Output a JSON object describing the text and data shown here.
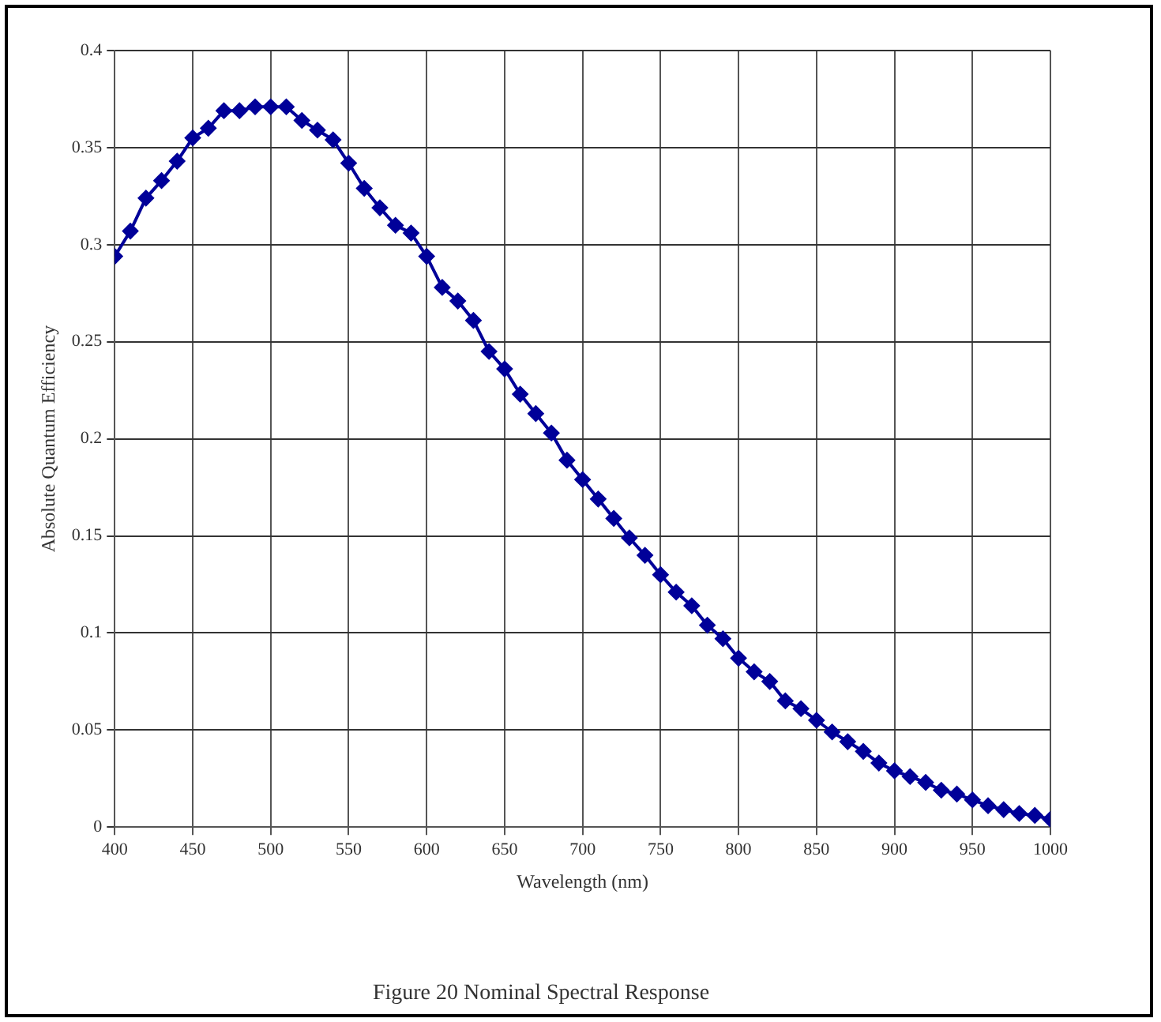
{
  "chart_data": {
    "type": "line",
    "title": "Figure 20 Nominal Spectral Response",
    "xlabel": "Wavelength (nm)",
    "ylabel": "Absolute Quantum Efficiency",
    "x": [
      400,
      410,
      420,
      430,
      440,
      450,
      460,
      470,
      480,
      490,
      500,
      510,
      520,
      530,
      540,
      550,
      560,
      570,
      580,
      590,
      600,
      610,
      620,
      630,
      640,
      650,
      660,
      670,
      680,
      690,
      700,
      710,
      720,
      730,
      740,
      750,
      760,
      770,
      780,
      790,
      800,
      810,
      820,
      830,
      840,
      850,
      860,
      870,
      880,
      890,
      900,
      910,
      920,
      930,
      940,
      950,
      960,
      970,
      980,
      990,
      1000
    ],
    "series": [
      {
        "color": "#000099",
        "values": [
          0.294,
          0.307,
          0.324,
          0.333,
          0.343,
          0.355,
          0.36,
          0.369,
          0.369,
          0.371,
          0.371,
          0.371,
          0.364,
          0.359,
          0.354,
          0.342,
          0.329,
          0.319,
          0.31,
          0.306,
          0.294,
          0.278,
          0.271,
          0.261,
          0.245,
          0.236,
          0.223,
          0.213,
          0.203,
          0.189,
          0.179,
          0.169,
          0.159,
          0.149,
          0.14,
          0.13,
          0.121,
          0.114,
          0.104,
          0.097,
          0.087,
          0.08,
          0.075,
          0.065,
          0.061,
          0.055,
          0.049,
          0.044,
          0.039,
          0.033,
          0.029,
          0.026,
          0.023,
          0.019,
          0.017,
          0.014,
          0.011,
          0.009,
          0.007,
          0.006,
          0.004
        ]
      }
    ],
    "xlim": [
      400,
      1000
    ],
    "xticks": [
      400,
      450,
      500,
      550,
      600,
      650,
      700,
      750,
      800,
      850,
      900,
      950,
      1000
    ],
    "ylim": [
      0,
      0.4
    ],
    "yticks": [
      0,
      0.05,
      0.1,
      0.15,
      0.2,
      0.25,
      0.3,
      0.35,
      0.4
    ],
    "grid": true,
    "legend": false,
    "marker": "diamond",
    "line_style": "solid"
  }
}
